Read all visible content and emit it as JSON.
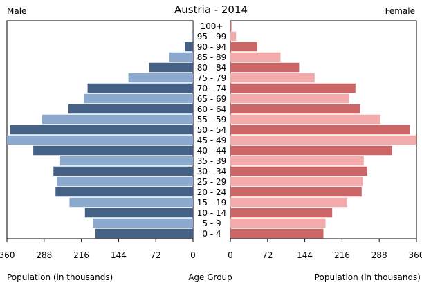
{
  "chart_data": {
    "type": "bar",
    "title": "Austria - 2014",
    "left_label": "Male",
    "right_label": "Female",
    "xlabel_left": "Population (in thousands)",
    "xlabel_center": "Age Group",
    "xlabel_right": "Population (in thousands)",
    "xlim": [
      0,
      360
    ],
    "ticks": [
      360,
      288,
      216,
      144,
      72,
      0
    ],
    "ticks_right": [
      0,
      72,
      144,
      216,
      288,
      360
    ],
    "categories": [
      "100+",
      "95 - 99",
      "90 - 94",
      "85 - 89",
      "80 - 84",
      "75 - 79",
      "70 - 74",
      "65 - 69",
      "60 - 64",
      "55 - 59",
      "50 - 54",
      "45 - 49",
      "40 - 44",
      "35 - 39",
      "30 - 34",
      "25 - 29",
      "20 - 24",
      "15 - 19",
      "10 - 14",
      "5 - 9",
      "0 - 4"
    ],
    "series": [
      {
        "name": "Male",
        "values": [
          0.5,
          2,
          16,
          46,
          85,
          125,
          204,
          211,
          241,
          292,
          354,
          368,
          309,
          257,
          270,
          263,
          266,
          239,
          209,
          194,
          189
        ]
      },
      {
        "name": "Female",
        "values": [
          2,
          11,
          52,
          97,
          133,
          163,
          242,
          230,
          251,
          290,
          347,
          360,
          313,
          258,
          265,
          256,
          254,
          226,
          197,
          184,
          180
        ]
      }
    ],
    "colors": {
      "male_dark": "#456286",
      "male_light": "#8aa9cc",
      "female_dark": "#cc6666",
      "female_light": "#f2aaaa"
    }
  }
}
